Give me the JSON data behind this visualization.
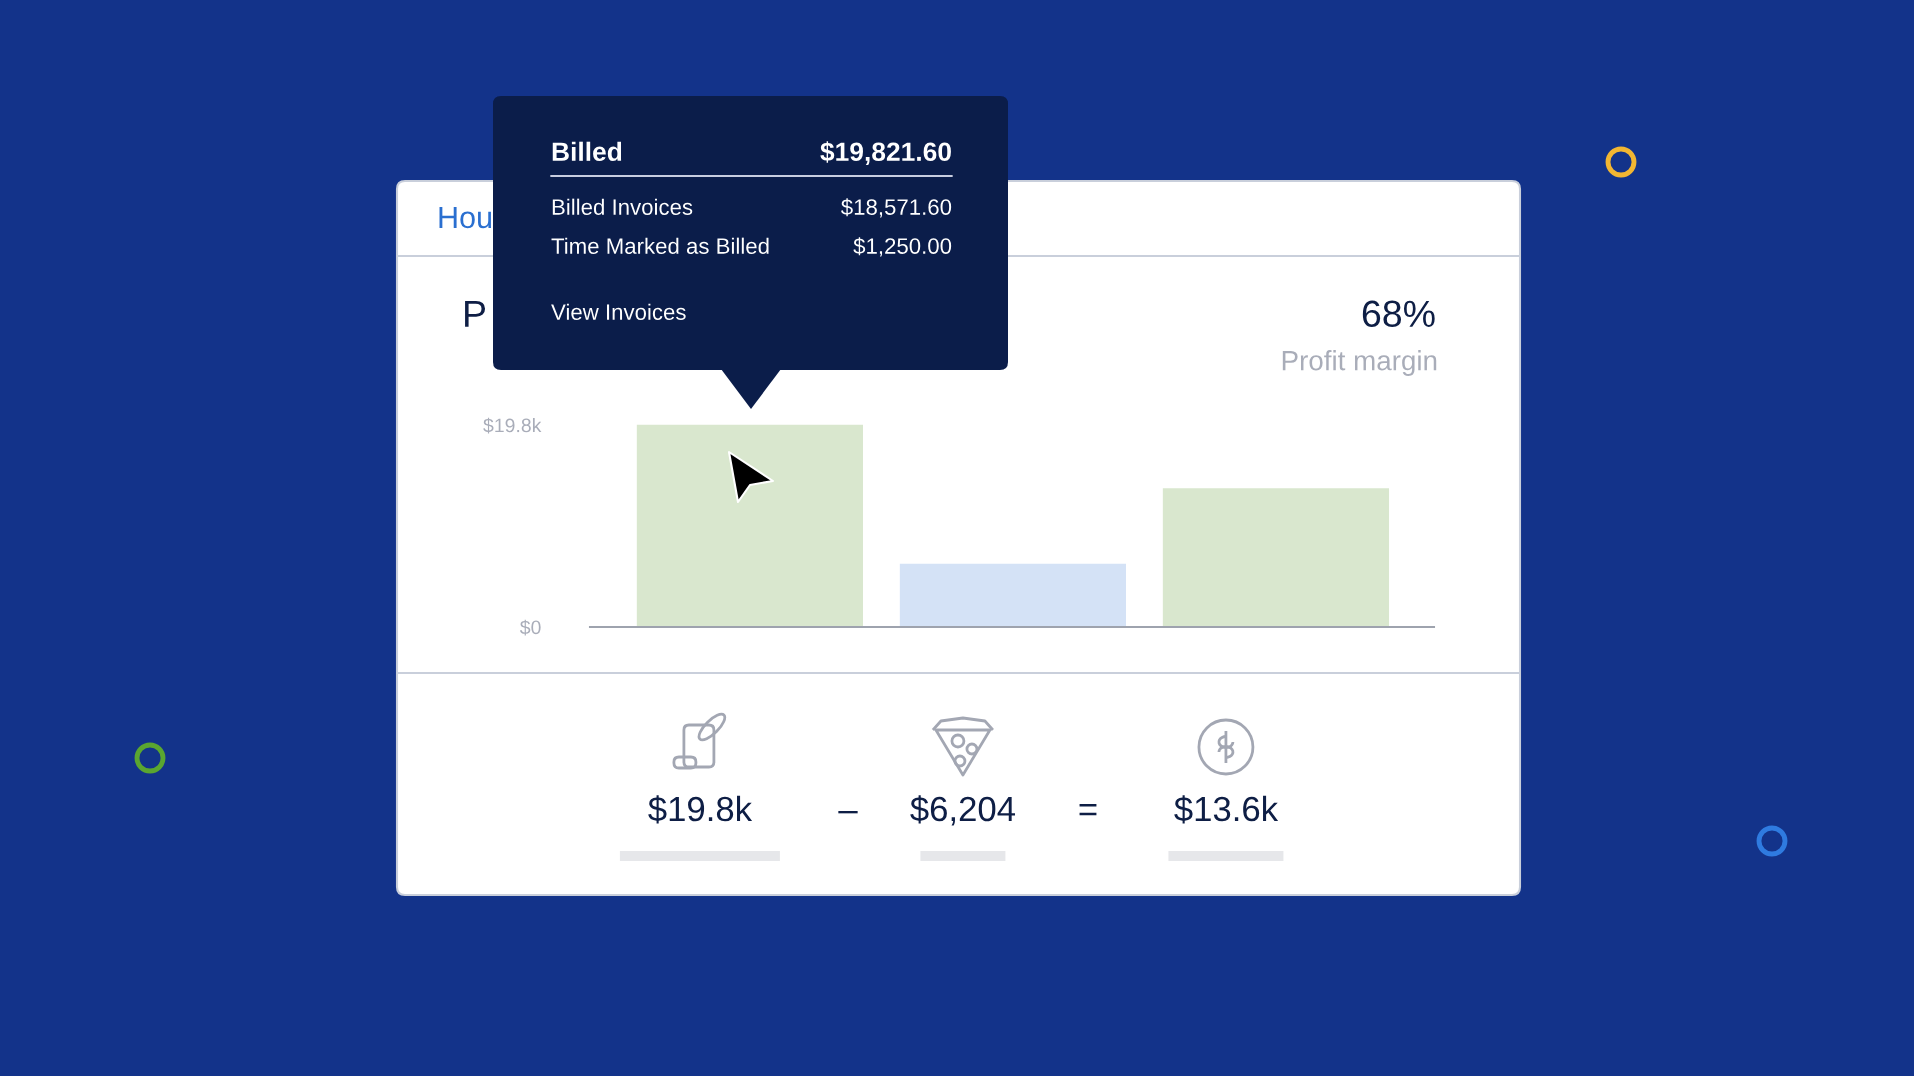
{
  "chart_data": {
    "type": "bar",
    "categories": [
      null,
      null,
      null
    ],
    "values": [
      19821.6,
      6204,
      13600
    ],
    "colors": [
      "#d9e7ce",
      "#d4e2f6",
      "#d9e7ce"
    ],
    "value_labels": [
      "$19.8k",
      "$6,204",
      "$13.6k"
    ],
    "ylim": [
      0,
      20000
    ],
    "yticks": [
      {
        "value": 0,
        "label": "$0"
      },
      {
        "value": 19800,
        "label": "$19.8k"
      }
    ],
    "tick_labels": "y",
    "annotations": [
      "Hou",
      "P",
      "Billed",
      "$19,821.60",
      "Billed Invoices",
      "$18,571.60",
      "Time Marked as Billed",
      "$1,250.00",
      "View Invoices",
      "68%",
      "Profit margin",
      "–",
      "="
    ]
  }
}
